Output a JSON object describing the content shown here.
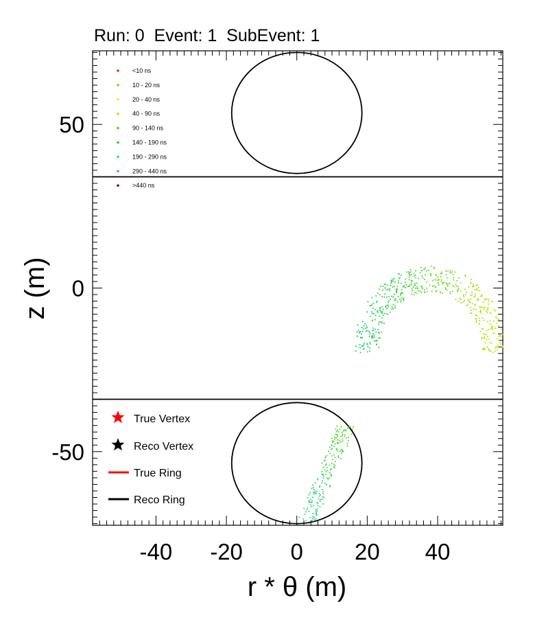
{
  "title": "Run: 0  Event: 1  SubEvent: 1",
  "chart_data": {
    "type": "scatter",
    "title": "Run: 0  Event: 1  SubEvent: 1",
    "xlabel": "r * θ (m)",
    "ylabel": "z (m)",
    "xlim": [
      -58,
      58.5
    ],
    "ylim": [
      -72.5,
      72.5
    ],
    "x_ticks": [
      "-40",
      "-20",
      "0",
      "20",
      "40"
    ],
    "x_tick_values": [
      -40,
      -20,
      0,
      20,
      40
    ],
    "y_ticks": [
      "50",
      "0",
      "-50"
    ],
    "y_tick_values": [
      50,
      0,
      -50
    ],
    "grid": false,
    "detector_lines_z": [
      34,
      -34
    ],
    "top_cap_circle": {
      "cx": 0,
      "cz": 53.5,
      "r": 18.5
    },
    "bottom_cap_circle": {
      "cx": 0,
      "cz": -53.5,
      "r": 18.5
    },
    "time_legend": {
      "position": "top-left",
      "entries": [
        {
          "label": "<10 ns",
          "color": "#ff2a00"
        },
        {
          "label": "10 - 20 ns",
          "color": "#ff9900"
        },
        {
          "label": "20 - 40 ns",
          "color": "#ffee00"
        },
        {
          "label": "40 - 90 ns",
          "color": "#bde600"
        },
        {
          "label": "90 - 140 ns",
          "color": "#55dd00"
        },
        {
          "label": "140 - 190 ns",
          "color": "#22cc44"
        },
        {
          "label": "190 - 290 ns",
          "color": "#22ddaa"
        },
        {
          "label": "290 - 440 ns",
          "color": "#22bbbb"
        },
        {
          "label": ">440 ns",
          "color": "#1a1aff"
        }
      ]
    },
    "marker_legend": {
      "position": "bottom-left",
      "entries": [
        {
          "label": "True Vertex",
          "symbol": "star",
          "color": "#ff0000"
        },
        {
          "label": "Reco Vertex",
          "symbol": "star",
          "color": "#000000"
        },
        {
          "label": "True Ring",
          "symbol": "line",
          "color": "#ff0000"
        },
        {
          "label": "Reco Ring",
          "symbol": "line",
          "color": "#000000"
        }
      ]
    },
    "hit_ring_barrel": {
      "cx": 38,
      "cz": -18,
      "r": 18,
      "thickness": 3.5,
      "arc_from_deg": -5,
      "arc_to_deg": 185,
      "n_hits": 520
    },
    "hit_band_cap": {
      "from": [
        14,
        -42
      ],
      "to": [
        3,
        -71
      ],
      "width": 5,
      "n_hits": 190
    }
  }
}
